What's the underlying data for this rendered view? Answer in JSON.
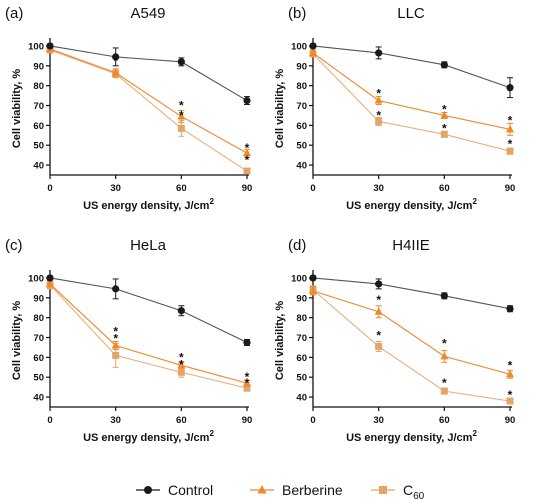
{
  "legend": {
    "items": [
      {
        "key": "control",
        "label": "Control",
        "marker": "circle",
        "color": "#1a1a1a"
      },
      {
        "key": "berberine",
        "label": "Berberine",
        "marker": "triangle",
        "color": "#f0892b"
      },
      {
        "key": "c60",
        "label": "C",
        "sub": "60",
        "marker": "square",
        "color": "#e3a56a"
      }
    ]
  },
  "chart_data": [
    {
      "type": "line",
      "panel": "(a)",
      "title": "A549",
      "xlabel": "US energy density, J/cm",
      "xlabel_sup": "2",
      "ylabel": "Cell viability, %",
      "x": [
        0,
        30,
        60,
        90
      ],
      "xlim": [
        0,
        90
      ],
      "ylim": [
        35,
        102
      ],
      "yticks": [
        40,
        50,
        60,
        70,
        80,
        90,
        100
      ],
      "series": [
        {
          "name": "Control",
          "values": [
            100,
            94.5,
            92,
            72.5
          ],
          "errors": [
            1,
            4.5,
            2,
            2
          ]
        },
        {
          "name": "Berberine",
          "values": [
            98.5,
            86.5,
            64.5,
            46
          ],
          "errors": [
            1.5,
            2,
            3,
            2
          ]
        },
        {
          "name": "C60",
          "values": [
            98,
            86,
            58.5,
            37
          ],
          "errors": [
            1.5,
            2,
            4,
            1
          ]
        }
      ],
      "annotations": [
        {
          "x": 30,
          "y": 92.5,
          "text": "*"
        },
        {
          "x": 60,
          "y": 70,
          "text": "*"
        },
        {
          "x": 60,
          "y": 65,
          "text": "*"
        },
        {
          "x": 90,
          "y": 48.5,
          "text": "*"
        },
        {
          "x": 90,
          "y": 42.5,
          "text": "*"
        }
      ]
    },
    {
      "type": "line",
      "panel": "(b)",
      "title": "LLC",
      "xlabel": "US energy density, J/cm",
      "xlabel_sup": "2",
      "ylabel": "Cell viability, %",
      "x": [
        0,
        30,
        60,
        90
      ],
      "xlim": [
        0,
        90
      ],
      "ylim": [
        35,
        102
      ],
      "yticks": [
        40,
        50,
        60,
        70,
        80,
        90,
        100
      ],
      "series": [
        {
          "name": "Control",
          "values": [
            100,
            96.5,
            90.5,
            79
          ],
          "errors": [
            1,
            3,
            1.5,
            5
          ]
        },
        {
          "name": "Berberine",
          "values": [
            96.5,
            72.5,
            65,
            58
          ],
          "errors": [
            1.5,
            2,
            1.5,
            3
          ]
        },
        {
          "name": "C60",
          "values": [
            96,
            62,
            55.5,
            47
          ],
          "errors": [
            1.5,
            2,
            1.5,
            1.5
          ]
        }
      ],
      "annotations": [
        {
          "x": 30,
          "y": 76,
          "text": "*"
        },
        {
          "x": 30,
          "y": 65,
          "text": "*"
        },
        {
          "x": 60,
          "y": 68,
          "text": "*"
        },
        {
          "x": 60,
          "y": 58.5,
          "text": "*"
        },
        {
          "x": 90,
          "y": 62.5,
          "text": "*"
        },
        {
          "x": 90,
          "y": 50.5,
          "text": "*"
        }
      ]
    },
    {
      "type": "line",
      "panel": "(c)",
      "title": "HeLa",
      "xlabel": "US energy density, J/cm",
      "xlabel_sup": "2",
      "ylabel": "Cell viability, %",
      "x": [
        0,
        30,
        60,
        90
      ],
      "xlim": [
        0,
        90
      ],
      "ylim": [
        35,
        102
      ],
      "yticks": [
        40,
        50,
        60,
        70,
        80,
        90,
        100
      ],
      "series": [
        {
          "name": "Control",
          "values": [
            100,
            94.5,
            83.5,
            67.5
          ],
          "errors": [
            1,
            5,
            2.5,
            1.5
          ]
        },
        {
          "name": "Berberine",
          "values": [
            97,
            66,
            56,
            47
          ],
          "errors": [
            1.5,
            2,
            1.5,
            1.5
          ]
        },
        {
          "name": "C60",
          "values": [
            96.5,
            61,
            52.5,
            44.5
          ],
          "errors": [
            2,
            6,
            2.5,
            1.5
          ]
        }
      ],
      "annotations": [
        {
          "x": 30,
          "y": 73,
          "text": "*"
        },
        {
          "x": 30,
          "y": 69.5,
          "text": "*"
        },
        {
          "x": 60,
          "y": 60,
          "text": "*"
        },
        {
          "x": 60,
          "y": 56.5,
          "text": "*"
        },
        {
          "x": 90,
          "y": 50,
          "text": "*"
        },
        {
          "x": 90,
          "y": 47,
          "text": "*"
        }
      ]
    },
    {
      "type": "line",
      "panel": "(d)",
      "title": "H4IIE",
      "xlabel": "US energy density, J/cm",
      "xlabel_sup": "2",
      "ylabel": "Cell viability, %",
      "x": [
        0,
        30,
        60,
        90
      ],
      "xlim": [
        0,
        90
      ],
      "ylim": [
        35,
        102
      ],
      "yticks": [
        40,
        50,
        60,
        70,
        80,
        90,
        100
      ],
      "series": [
        {
          "name": "Control",
          "values": [
            100,
            97,
            91,
            84.5
          ],
          "errors": [
            1,
            2.5,
            1.5,
            1.5
          ]
        },
        {
          "name": "Berberine",
          "values": [
            93.5,
            83,
            60.5,
            51.5
          ],
          "errors": [
            2,
            3,
            3,
            2
          ]
        },
        {
          "name": "C60",
          "values": [
            94,
            65.5,
            43,
            38
          ],
          "errors": [
            2,
            2.5,
            1.5,
            1
          ]
        }
      ],
      "annotations": [
        {
          "x": 30,
          "y": 89,
          "text": "*"
        },
        {
          "x": 30,
          "y": 71,
          "text": "*"
        },
        {
          "x": 60,
          "y": 67,
          "text": "*"
        },
        {
          "x": 60,
          "y": 47,
          "text": "*"
        },
        {
          "x": 90,
          "y": 56,
          "text": "*"
        },
        {
          "x": 90,
          "y": 41,
          "text": "*"
        }
      ]
    }
  ]
}
